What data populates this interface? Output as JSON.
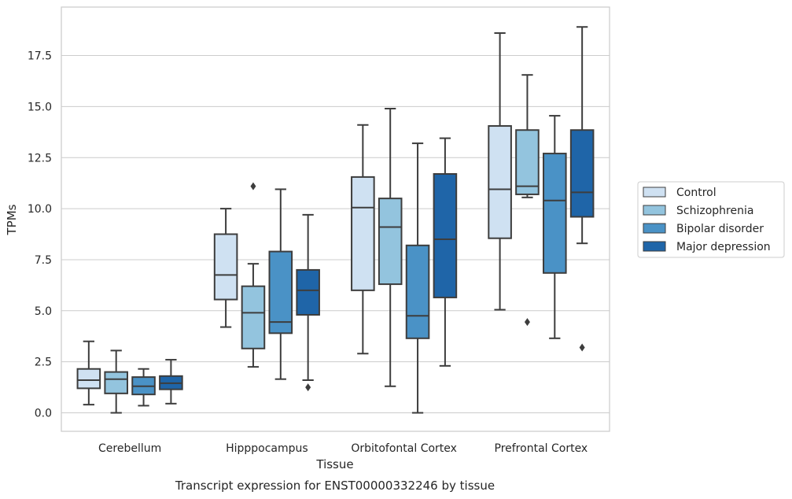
{
  "caption": "Transcript expression for ENST00000332246 by tissue",
  "chart_data": {
    "type": "boxplot",
    "title": "",
    "xlabel": "Tissue",
    "ylabel": "TPMs",
    "ylim": [
      -0.8,
      19.8
    ],
    "yticks": [
      "0.0",
      "2.5",
      "5.0",
      "7.5",
      "10.0",
      "12.5",
      "15.0",
      "17.5"
    ],
    "grid": "horizontal",
    "legend_position": "right, outside plot",
    "categories": [
      "Cerebellum",
      "Hipppocampus",
      "Orbitofontal Cortex",
      "Prefrontal Cortex"
    ],
    "series": [
      {
        "name": "Control",
        "color": "#cfe1f2",
        "boxes": [
          {
            "whisker_low": 0.4,
            "q1": 1.2,
            "median": 1.6,
            "q3": 2.15,
            "whisker_high": 3.5,
            "outliers": []
          },
          {
            "whisker_low": 4.2,
            "q1": 5.55,
            "median": 6.75,
            "q3": 8.75,
            "whisker_high": 10.0,
            "outliers": []
          },
          {
            "whisker_low": 2.9,
            "q1": 6.0,
            "median": 10.05,
            "q3": 11.55,
            "whisker_high": 14.1,
            "outliers": []
          },
          {
            "whisker_low": 5.05,
            "q1": 8.55,
            "median": 10.95,
            "q3": 14.05,
            "whisker_high": 18.6,
            "outliers": []
          }
        ]
      },
      {
        "name": "Schizophrenia",
        "color": "#93c4de",
        "boxes": [
          {
            "whisker_low": 0.0,
            "q1": 0.95,
            "median": 1.65,
            "q3": 2.0,
            "whisker_high": 3.05,
            "outliers": []
          },
          {
            "whisker_low": 2.25,
            "q1": 3.15,
            "median": 4.9,
            "q3": 6.2,
            "whisker_high": 7.3,
            "outliers": [
              11.1
            ]
          },
          {
            "whisker_low": 1.3,
            "q1": 6.3,
            "median": 9.1,
            "q3": 10.5,
            "whisker_high": 14.9,
            "outliers": []
          },
          {
            "whisker_low": 10.55,
            "q1": 10.7,
            "median": 11.1,
            "q3": 13.85,
            "whisker_high": 16.55,
            "outliers": [
              4.45
            ]
          }
        ]
      },
      {
        "name": "Bipolar disorder",
        "color": "#4a92c6",
        "boxes": [
          {
            "whisker_low": 0.35,
            "q1": 0.9,
            "median": 1.3,
            "q3": 1.75,
            "whisker_high": 2.15,
            "outliers": []
          },
          {
            "whisker_low": 1.65,
            "q1": 3.9,
            "median": 4.45,
            "q3": 7.9,
            "whisker_high": 10.95,
            "outliers": []
          },
          {
            "whisker_low": 0.0,
            "q1": 3.65,
            "median": 4.75,
            "q3": 8.2,
            "whisker_high": 13.2,
            "outliers": []
          },
          {
            "whisker_low": 3.65,
            "q1": 6.85,
            "median": 10.4,
            "q3": 12.7,
            "whisker_high": 14.55,
            "outliers": []
          }
        ]
      },
      {
        "name": "Major depression",
        "color": "#1f65a8",
        "boxes": [
          {
            "whisker_low": 0.45,
            "q1": 1.15,
            "median": 1.45,
            "q3": 1.8,
            "whisker_high": 2.6,
            "outliers": []
          },
          {
            "whisker_low": 1.6,
            "q1": 4.8,
            "median": 6.0,
            "q3": 7.0,
            "whisker_high": 9.7,
            "outliers": [
              1.25
            ]
          },
          {
            "whisker_low": 2.3,
            "q1": 5.65,
            "median": 8.5,
            "q3": 11.7,
            "whisker_high": 13.45,
            "outliers": []
          },
          {
            "whisker_low": 8.3,
            "q1": 9.6,
            "median": 10.8,
            "q3": 13.85,
            "whisker_high": 18.9,
            "outliers": [
              3.2
            ]
          }
        ]
      }
    ]
  }
}
